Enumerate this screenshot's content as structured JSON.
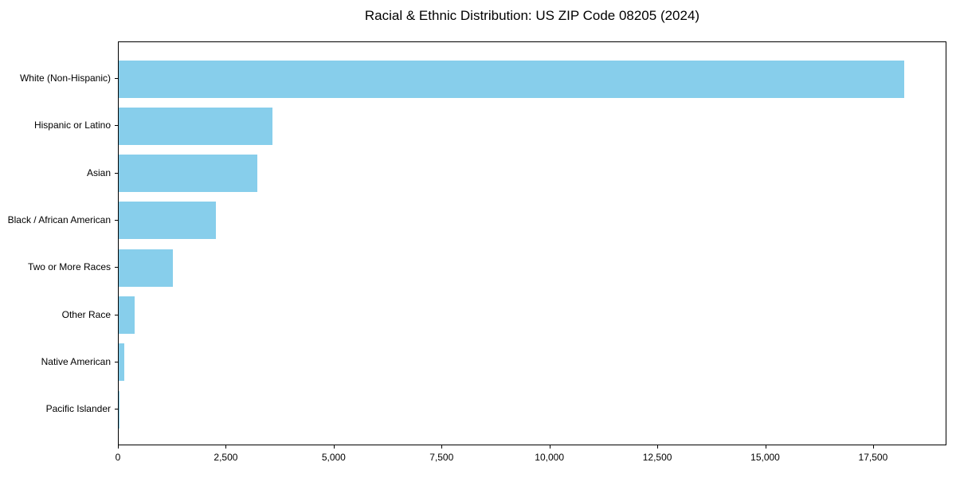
{
  "chart_data": {
    "type": "bar",
    "orientation": "horizontal",
    "title": "Racial & Ethnic Distribution: US ZIP Code 08205 (2024)",
    "categories": [
      "White (Non-Hispanic)",
      "Hispanic or Latino",
      "Asian",
      "Black / African American",
      "Two or More Races",
      "Other Race",
      "Native American",
      "Pacific Islander"
    ],
    "values": [
      18200,
      3570,
      3210,
      2250,
      1250,
      360,
      120,
      10
    ],
    "xlabel": "",
    "ylabel": "",
    "xlim": [
      0,
      19200
    ],
    "x_tick_values": [
      0,
      2500,
      5000,
      7500,
      10000,
      12500,
      15000,
      17500
    ],
    "x_tick_labels": [
      "0",
      "2,500",
      "5,000",
      "7,500",
      "10,000",
      "12,500",
      "15,000",
      "17,500"
    ],
    "bar_color": "#87CEEB",
    "axis_color": "#000000",
    "grid": false,
    "legend": null
  }
}
